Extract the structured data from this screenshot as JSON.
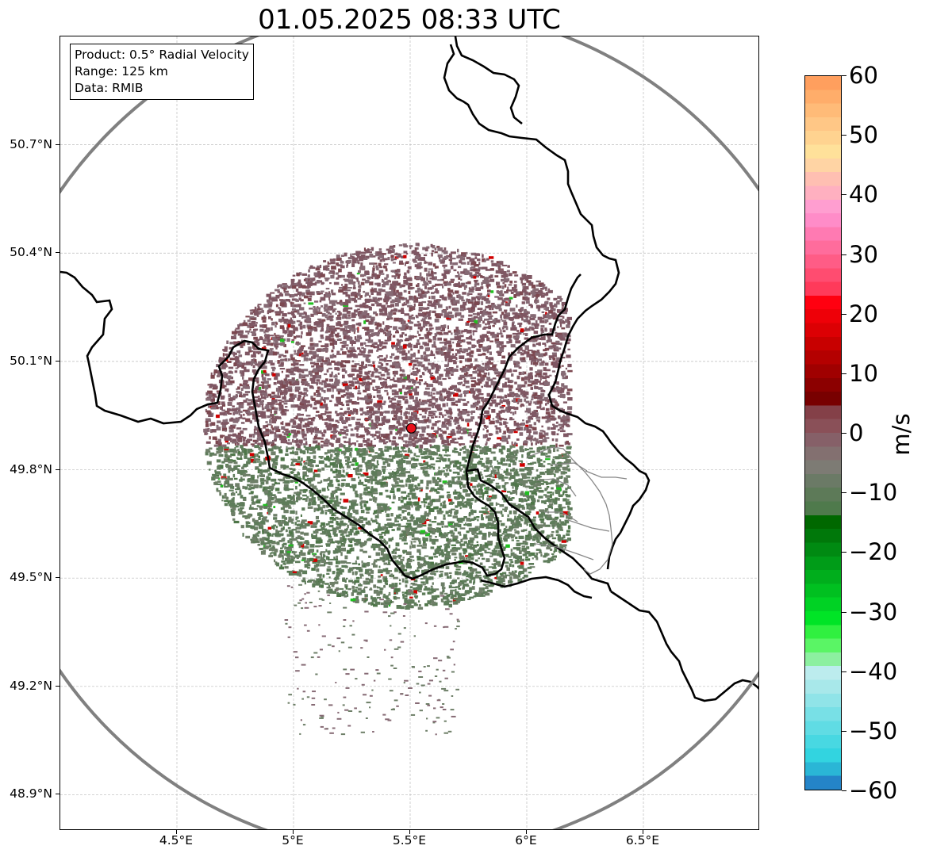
{
  "title": "01.05.2025 08:33 UTC",
  "info_box": {
    "product": "Product: 0.5° Radial Velocity",
    "range": "Range: 125 km",
    "source": "Data: RMIB"
  },
  "map": {
    "lon_range": [
      4.0,
      7.0
    ],
    "lat_range": [
      48.8,
      51.0
    ],
    "lat_ticks": [
      {
        "value": 50.7,
        "label": "50.7°N"
      },
      {
        "value": 50.4,
        "label": "50.4°N"
      },
      {
        "value": 50.1,
        "label": "50.1°N"
      },
      {
        "value": 49.8,
        "label": "49.8°N"
      },
      {
        "value": 49.5,
        "label": "49.5°N"
      },
      {
        "value": 49.2,
        "label": "49.2°N"
      },
      {
        "value": 48.9,
        "label": "48.9°N"
      }
    ],
    "lon_ticks": [
      {
        "value": 4.5,
        "label": "4.5°E"
      },
      {
        "value": 5.0,
        "label": "5°E"
      },
      {
        "value": 5.5,
        "label": "5.5°E"
      },
      {
        "value": 6.0,
        "label": "6°E"
      },
      {
        "value": 6.5,
        "label": "6.5°E"
      }
    ],
    "radar_site": {
      "lon": 5.505,
      "lat": 49.915,
      "color": "#e8101a"
    },
    "range_ring_color": "#808080",
    "gridlines": true
  },
  "colorbar": {
    "unit": "m/s",
    "min": -60,
    "max": 60,
    "ticks": [
      {
        "value": 60,
        "label": "60"
      },
      {
        "value": 50,
        "label": "50"
      },
      {
        "value": 40,
        "label": "40"
      },
      {
        "value": 30,
        "label": "30"
      },
      {
        "value": 20,
        "label": "20"
      },
      {
        "value": 10,
        "label": "10"
      },
      {
        "value": 0,
        "label": "0"
      },
      {
        "value": -10,
        "label": "−10"
      },
      {
        "value": -20,
        "label": "−20"
      },
      {
        "value": -30,
        "label": "−30"
      },
      {
        "value": -40,
        "label": "−40"
      },
      {
        "value": -50,
        "label": "−50"
      },
      {
        "value": -60,
        "label": "−60"
      }
    ],
    "colors_top_to_bottom": [
      "#ff9f5e",
      "#ffad6a",
      "#ffbb78",
      "#ffc786",
      "#ffd390",
      "#ffe19a",
      "#ffd4a4",
      "#ffbfb2",
      "#ffb0c0",
      "#ff9ed0",
      "#ff8cc8",
      "#ff7ab2",
      "#ff6c9c",
      "#ff5c86",
      "#ff4c70",
      "#ff3a5a",
      "#ff0010",
      "#ee0008",
      "#dc0004",
      "#c80000",
      "#b40000",
      "#a00000",
      "#8c0000",
      "#780000",
      "#844048",
      "#8a5058",
      "#866068",
      "#837070",
      "#7d7b74",
      "#6b7a66",
      "#5d7a58",
      "#4f7a4c",
      "#006800",
      "#00780a",
      "#008a12",
      "#009c18",
      "#00ae1c",
      "#00c020",
      "#00d224",
      "#00e426",
      "#30f040",
      "#5af565",
      "#8cf0a0",
      "#bcecee",
      "#a8e8ea",
      "#90e4e8",
      "#78e0e6",
      "#60dce4",
      "#48d8e2",
      "#32d4e0",
      "#2ab6d6",
      "#2484c8"
    ]
  }
}
